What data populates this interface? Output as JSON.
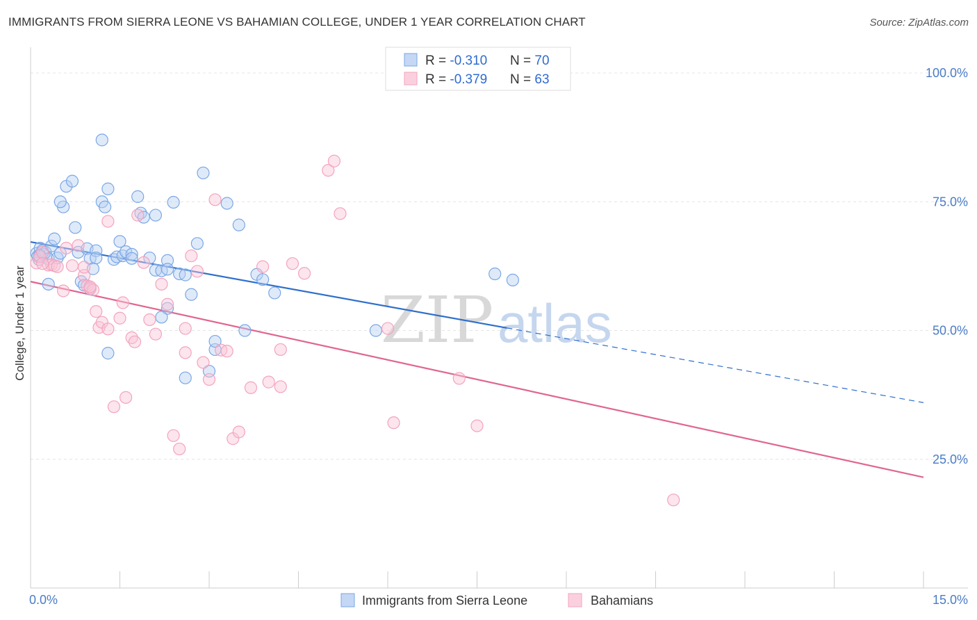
{
  "header": {
    "title": "IMMIGRANTS FROM SIERRA LEONE VS BAHAMIAN COLLEGE, UNDER 1 YEAR CORRELATION CHART",
    "source": "Source: ZipAtlas.com"
  },
  "watermark": {
    "zip": "ZIP",
    "atlas": "atlas"
  },
  "chart_data": {
    "type": "scatter",
    "title": "IMMIGRANTS FROM SIERRA LEONE VS BAHAMIAN COLLEGE, UNDER 1 YEAR CORRELATION CHART",
    "xlabel": "",
    "ylabel": "College, Under 1 year",
    "xlim": [
      0,
      15
    ],
    "ylim": [
      0,
      105
    ],
    "x_tick_labels": [
      "0.0%",
      "15.0%"
    ],
    "y_ticks": [
      25,
      50,
      75,
      100
    ],
    "y_tick_labels": [
      "25.0%",
      "50.0%",
      "75.0%",
      "100.0%"
    ],
    "grid": true,
    "legend_position": "top-center",
    "legend": {
      "blue": {
        "r_label": "R = ",
        "r_value": "-0.310",
        "n_label": "N = ",
        "n_value": "70"
      },
      "pink": {
        "r_label": "R = ",
        "r_value": "-0.379",
        "n_label": "N = ",
        "n_value": "63"
      }
    },
    "series": [
      {
        "name": "Immigrants from Sierra Leone",
        "color": "#7aa7e6",
        "line_color": "#2f6fcc",
        "trend": {
          "x0": 0.0,
          "y0": 67.2,
          "x1": 8.0,
          "y1": 50.5,
          "x_dash_end": 15.0,
          "y_dash_end": 36.0
        },
        "points": [
          [
            0.1,
            65.0
          ],
          [
            0.12,
            64.4
          ],
          [
            0.14,
            63.8
          ],
          [
            0.16,
            66.0
          ],
          [
            0.2,
            65.5
          ],
          [
            0.22,
            64.8
          ],
          [
            0.25,
            65.2
          ],
          [
            0.3,
            63.9
          ],
          [
            0.35,
            66.4
          ],
          [
            0.4,
            67.8
          ],
          [
            0.45,
            64.1
          ],
          [
            0.5,
            65.0
          ],
          [
            0.55,
            74.0
          ],
          [
            0.6,
            78.0
          ],
          [
            0.5,
            75.0
          ],
          [
            0.7,
            79.0
          ],
          [
            0.75,
            70.0
          ],
          [
            0.8,
            65.2
          ],
          [
            0.85,
            59.5
          ],
          [
            0.9,
            58.8
          ],
          [
            0.95,
            65.9
          ],
          [
            1.0,
            64.0
          ],
          [
            1.05,
            62.0
          ],
          [
            1.1,
            65.5
          ],
          [
            1.2,
            75.0
          ],
          [
            1.25,
            74.0
          ],
          [
            1.3,
            77.5
          ],
          [
            1.4,
            63.8
          ],
          [
            1.45,
            64.3
          ],
          [
            1.5,
            67.3
          ],
          [
            1.55,
            64.5
          ],
          [
            1.6,
            65.3
          ],
          [
            1.7,
            64.8
          ],
          [
            1.8,
            76.0
          ],
          [
            1.85,
            72.8
          ],
          [
            1.9,
            72.0
          ],
          [
            2.0,
            64.1
          ],
          [
            2.1,
            61.7
          ],
          [
            2.2,
            61.6
          ],
          [
            2.3,
            63.6
          ],
          [
            2.5,
            61.0
          ],
          [
            2.6,
            60.8
          ],
          [
            2.7,
            57.0
          ],
          [
            1.7,
            64.0
          ],
          [
            2.8,
            66.9
          ],
          [
            2.6,
            40.8
          ],
          [
            3.0,
            42.1
          ],
          [
            3.1,
            46.3
          ],
          [
            3.3,
            74.7
          ],
          [
            3.5,
            70.5
          ],
          [
            3.6,
            50.0
          ],
          [
            3.8,
            60.9
          ],
          [
            3.9,
            59.9
          ],
          [
            4.1,
            57.3
          ],
          [
            2.3,
            54.3
          ],
          [
            2.2,
            52.6
          ],
          [
            1.3,
            45.6
          ],
          [
            1.2,
            87.0
          ],
          [
            3.1,
            47.9
          ],
          [
            2.1,
            72.4
          ],
          [
            2.4,
            74.9
          ],
          [
            0.15,
            64.6
          ],
          [
            0.3,
            59.0
          ],
          [
            1.0,
            58.1
          ],
          [
            5.8,
            50.0
          ],
          [
            7.8,
            61.0
          ],
          [
            8.1,
            59.8
          ],
          [
            1.1,
            64.1
          ],
          [
            2.9,
            80.6
          ],
          [
            2.3,
            61.9
          ]
        ]
      },
      {
        "name": "Bahamians",
        "color": "#f4a3bd",
        "line_color": "#e0658f",
        "trend": {
          "x0": 0.0,
          "y0": 59.5,
          "x1": 15.0,
          "y1": 21.5
        },
        "points": [
          [
            0.1,
            63.1
          ],
          [
            0.15,
            64.3
          ],
          [
            0.2,
            65.2
          ],
          [
            0.3,
            62.7
          ],
          [
            0.35,
            62.8
          ],
          [
            0.4,
            62.6
          ],
          [
            0.45,
            62.4
          ],
          [
            0.55,
            57.7
          ],
          [
            0.7,
            62.6
          ],
          [
            0.8,
            66.5
          ],
          [
            0.9,
            60.7
          ],
          [
            0.95,
            58.7
          ],
          [
            1.0,
            58.2
          ],
          [
            1.05,
            57.9
          ],
          [
            1.1,
            53.7
          ],
          [
            1.15,
            50.6
          ],
          [
            1.2,
            51.6
          ],
          [
            1.3,
            50.3
          ],
          [
            1.4,
            35.2
          ],
          [
            1.5,
            52.4
          ],
          [
            1.55,
            55.4
          ],
          [
            1.6,
            37.0
          ],
          [
            1.7,
            48.6
          ],
          [
            1.75,
            47.8
          ],
          [
            1.8,
            72.4
          ],
          [
            1.9,
            63.2
          ],
          [
            2.0,
            52.1
          ],
          [
            2.1,
            49.3
          ],
          [
            2.2,
            59.0
          ],
          [
            2.3,
            55.1
          ],
          [
            2.4,
            29.6
          ],
          [
            2.5,
            27.0
          ],
          [
            2.6,
            50.4
          ],
          [
            2.7,
            64.5
          ],
          [
            2.8,
            61.5
          ],
          [
            2.9,
            43.8
          ],
          [
            3.0,
            40.5
          ],
          [
            3.1,
            75.4
          ],
          [
            3.2,
            46.2
          ],
          [
            3.4,
            29.0
          ],
          [
            3.5,
            30.3
          ],
          [
            3.7,
            38.9
          ],
          [
            3.9,
            62.4
          ],
          [
            4.0,
            40.0
          ],
          [
            4.2,
            46.3
          ],
          [
            4.4,
            63.0
          ],
          [
            4.6,
            61.1
          ],
          [
            5.0,
            81.1
          ],
          [
            5.1,
            82.9
          ],
          [
            5.2,
            72.7
          ],
          [
            6.0,
            50.4
          ],
          [
            6.1,
            32.1
          ],
          [
            7.2,
            40.7
          ],
          [
            7.5,
            31.5
          ],
          [
            10.8,
            17.1
          ],
          [
            1.3,
            71.2
          ],
          [
            0.6,
            66.0
          ],
          [
            0.9,
            62.3
          ],
          [
            2.6,
            45.7
          ],
          [
            4.2,
            39.1
          ],
          [
            0.2,
            63.0
          ],
          [
            3.3,
            46.0
          ],
          [
            1.0,
            58.5
          ]
        ]
      }
    ]
  }
}
